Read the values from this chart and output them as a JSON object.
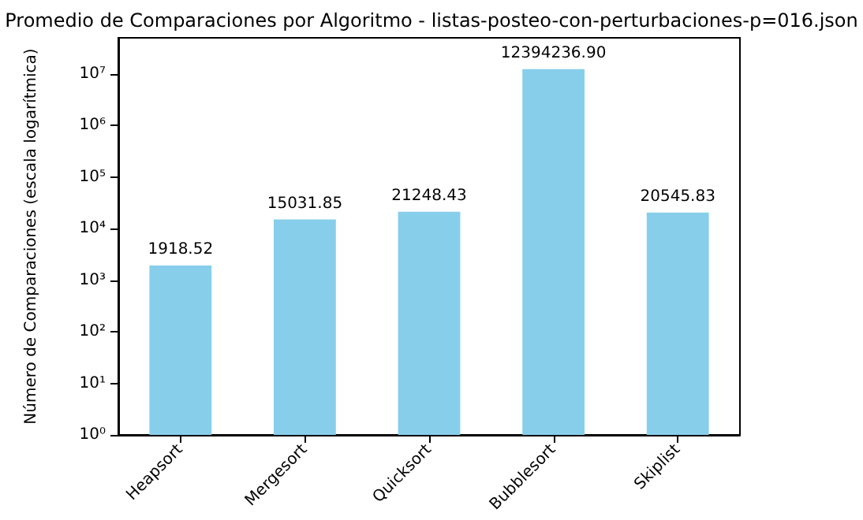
{
  "chart_data": {
    "type": "bar",
    "title": "Promedio de Comparaciones por Algoritmo - listas-posteo-con-perturbaciones-p=016.json",
    "ylabel": "Número de Comparaciones (escala logarítmica)",
    "categories": [
      "Heapsort",
      "Mergesort",
      "Quicksort",
      "Bubblesort",
      "Skiplist"
    ],
    "values": [
      1918.52,
      15031.85,
      21248.43,
      12394236.9,
      20545.83
    ],
    "value_labels": [
      "1918.52",
      "15031.85",
      "21248.43",
      "12394236.90",
      "20545.83"
    ],
    "color": "#87ceeb",
    "log": "y",
    "ylim": [
      1,
      50000000
    ],
    "yticks": [
      {
        "value": 1,
        "label": "10⁰"
      },
      {
        "value": 10,
        "label": "10¹"
      },
      {
        "value": 100,
        "label": "10²"
      },
      {
        "value": 1000,
        "label": "10³"
      },
      {
        "value": 10000,
        "label": "10⁴"
      },
      {
        "value": 100000,
        "label": "10⁵"
      },
      {
        "value": 1000000,
        "label": "10⁶"
      },
      {
        "value": 10000000,
        "label": "10⁷"
      }
    ],
    "grid": false
  }
}
